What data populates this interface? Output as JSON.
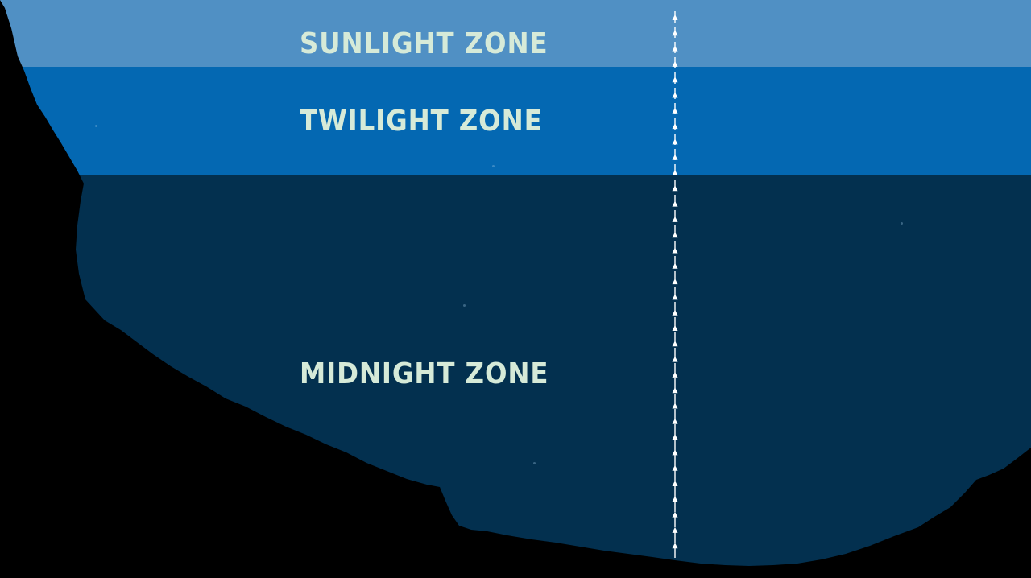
{
  "zones": [
    {
      "name": "SUNLIGHT ZONE",
      "color": "#5090c4"
    },
    {
      "name": "TWILIGHT ZONE",
      "color": "#0468b2"
    },
    {
      "name": "MIDNIGHT ZONE",
      "color": "#03304f"
    }
  ],
  "colors": {
    "label_text": "#d6ead8",
    "seafloor": "#000000",
    "depth_line": "#ffffff"
  },
  "icons": {
    "depth_marker": "arrow-up-icon"
  }
}
